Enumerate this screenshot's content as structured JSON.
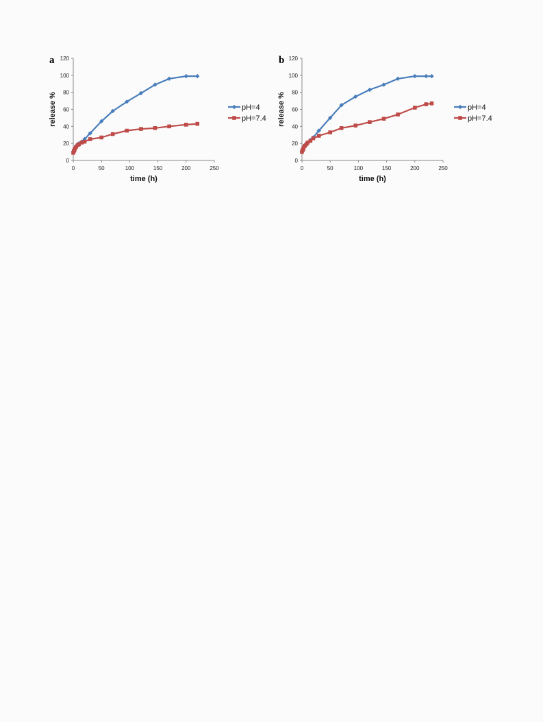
{
  "chart_data": [
    {
      "panel": "a",
      "type": "line",
      "xlabel": "time (h)",
      "ylabel": "release %",
      "xlim": [
        0,
        250
      ],
      "ylim": [
        0,
        120
      ],
      "xticks": [
        0,
        50,
        100,
        150,
        200,
        250
      ],
      "yticks": [
        0,
        20,
        40,
        60,
        80,
        100,
        120
      ],
      "grid": false,
      "legend": "right",
      "series": [
        {
          "name": "pH=4",
          "color": "#4a7ebb",
          "marker": "diamond",
          "x": [
            0,
            1,
            2,
            3,
            5,
            8,
            10,
            15,
            20,
            30,
            50,
            70,
            95,
            120,
            145,
            170,
            200,
            220
          ],
          "y": [
            10,
            12,
            13,
            15,
            17,
            19,
            20,
            22,
            25,
            32,
            46,
            58,
            69,
            79,
            89,
            96,
            99,
            99
          ]
        },
        {
          "name": "pH=7.4",
          "color": "#be4b48",
          "marker": "square",
          "x": [
            0,
            1,
            2,
            3,
            5,
            8,
            10,
            15,
            20,
            30,
            50,
            70,
            95,
            120,
            145,
            170,
            200,
            220
          ],
          "y": [
            9,
            11,
            12,
            14,
            16,
            18,
            19,
            21,
            22,
            25,
            27,
            31,
            35,
            37,
            38,
            40,
            42,
            43
          ]
        }
      ]
    },
    {
      "panel": "b",
      "type": "line",
      "xlabel": "time (h)",
      "ylabel": "release %",
      "xlim": [
        0,
        250
      ],
      "ylim": [
        0,
        120
      ],
      "xticks": [
        0,
        50,
        100,
        150,
        200,
        250
      ],
      "yticks": [
        0,
        20,
        40,
        60,
        80,
        100,
        120
      ],
      "grid": false,
      "legend": "right",
      "series": [
        {
          "name": "pH=4",
          "color": "#4a7ebb",
          "marker": "diamond",
          "x": [
            0,
            1,
            2,
            3,
            5,
            8,
            10,
            15,
            20,
            30,
            50,
            70,
            95,
            120,
            145,
            170,
            200,
            220,
            230
          ],
          "y": [
            11,
            13,
            14,
            16,
            18,
            20,
            21,
            24,
            27,
            35,
            50,
            65,
            75,
            83,
            89,
            96,
            99,
            99,
            99
          ]
        },
        {
          "name": "pH=7.4",
          "color": "#be4b48",
          "marker": "square",
          "x": [
            0,
            1,
            2,
            3,
            5,
            8,
            10,
            15,
            20,
            30,
            50,
            70,
            95,
            120,
            145,
            170,
            200,
            220,
            230
          ],
          "y": [
            10,
            12,
            13,
            15,
            17,
            19,
            21,
            23,
            26,
            29,
            33,
            38,
            41,
            45,
            49,
            54,
            62,
            66,
            67
          ]
        }
      ]
    }
  ]
}
